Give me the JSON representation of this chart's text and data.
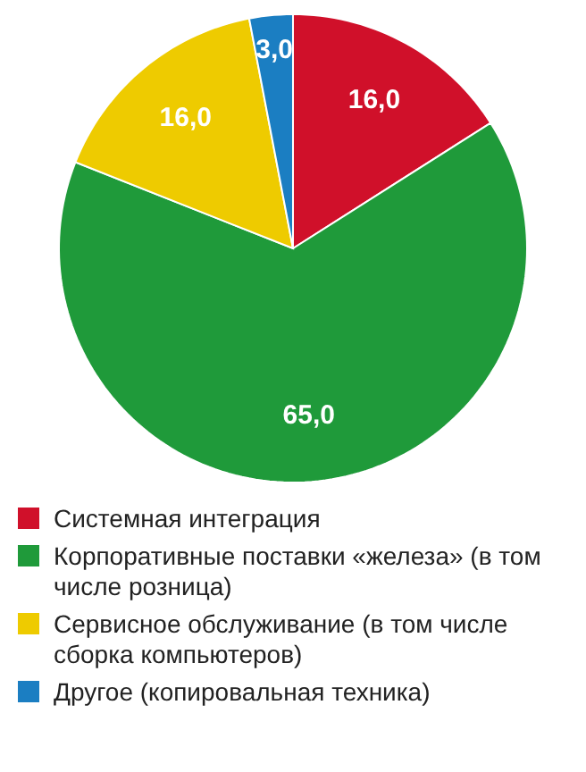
{
  "chart_data": {
    "type": "pie",
    "categories": [
      "Системная интеграция",
      "Корпоративные поставки «железа» (в том числе розница)",
      "Сервисное обслуживание (в том числе сборка компьютеров)",
      "Другое (копировальная техника)"
    ],
    "values": [
      16,
      65,
      16,
      3
    ],
    "colors": [
      "#d0102a",
      "#1f9a3a",
      "#eecb00",
      "#1b7ec2"
    ],
    "value_labels": [
      "16,0",
      "65,0",
      "16,0",
      "3,0"
    ],
    "legend": "bottom"
  }
}
